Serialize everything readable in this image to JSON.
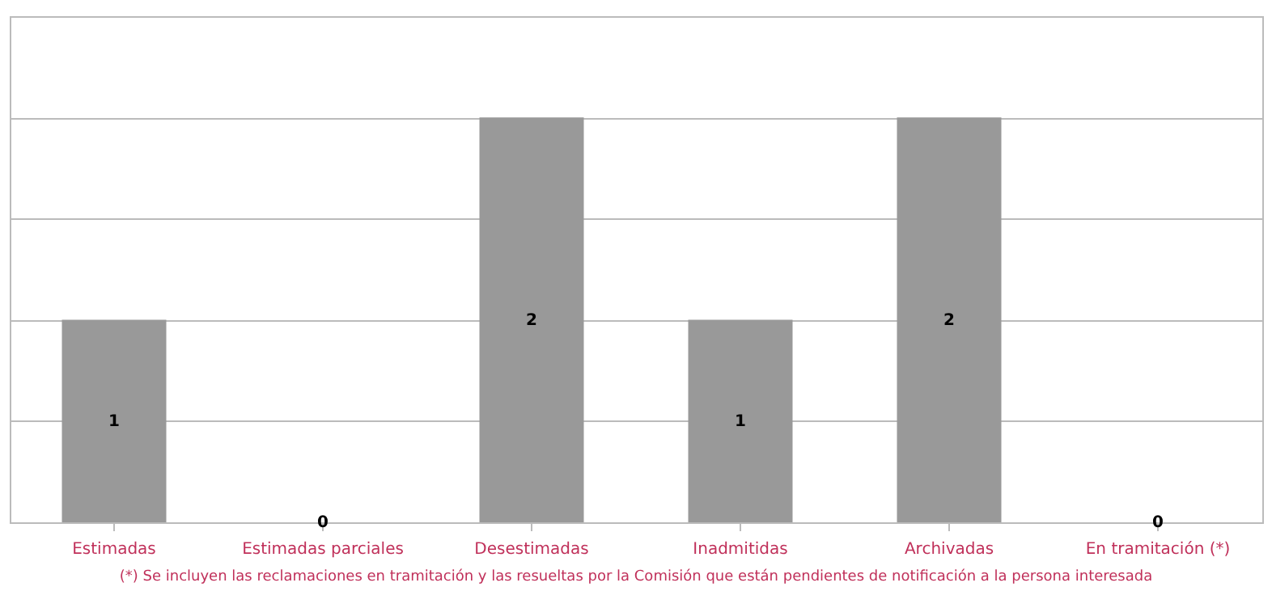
{
  "chart_data": {
    "type": "bar",
    "categories": [
      "Estimadas",
      "Estimadas parciales",
      "Desestimadas",
      "Inadmitidas",
      "Archivadas",
      "En tramitación (*)"
    ],
    "values": [
      1,
      0,
      2,
      1,
      2,
      0
    ],
    "color": "#999999",
    "ylim": [
      0,
      2.5
    ],
    "yticks": [
      {
        "value": 0,
        "label": null
      },
      {
        "value": 0.5,
        "label": null
      },
      {
        "value": 1,
        "label": null
      },
      {
        "value": 1.5,
        "label": null
      },
      {
        "value": 2,
        "label": null
      },
      {
        "value": 2.5,
        "label": null
      }
    ],
    "grid": "y",
    "tick_labels": "x",
    "data_labels": true,
    "annotations": [
      "(*) Se incluyen las reclamaciones en tramitación y las resueltas por la Comisión que están pendientes de notificación a la persona interesada"
    ]
  }
}
